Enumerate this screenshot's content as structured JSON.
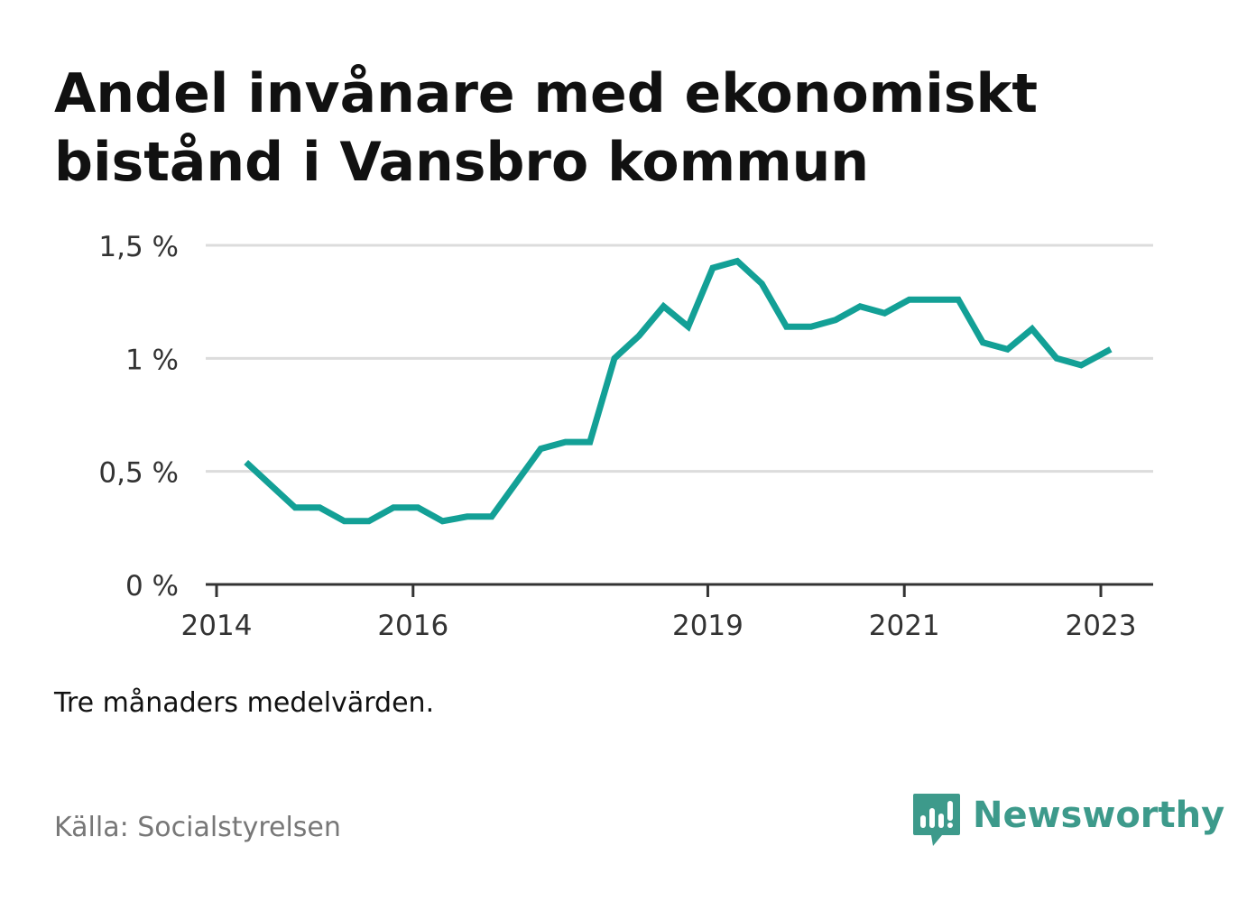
{
  "title": "Andel invånare med ekonomiskt bistånd i Vansbro kommun",
  "note": "Tre månaders medelvärden.",
  "source": "Källa: Socialstyrelsen",
  "brand": {
    "name": "Newsworthy",
    "color": "#3d9a8b",
    "icon": "newsworthy-logo-icon"
  },
  "colors": {
    "line": "#13a096",
    "grid": "#dcdcdc",
    "axis": "#333333"
  },
  "chart_data": {
    "type": "line",
    "title": "Andel invånare med ekonomiskt bistånd i Vansbro kommun",
    "xlabel": "",
    "ylabel": "",
    "ylim": [
      0,
      1.5
    ],
    "xlim": [
      2014.0,
      2023.4
    ],
    "grid": true,
    "yticks": [
      {
        "value": 0,
        "label": "0 %"
      },
      {
        "value": 0.5,
        "label": "0,5 %"
      },
      {
        "value": 1,
        "label": "1 %"
      },
      {
        "value": 1.5,
        "label": "1,5 %"
      }
    ],
    "xticks": [
      {
        "value": 2014,
        "label": "2014"
      },
      {
        "value": 2016,
        "label": "2016"
      },
      {
        "value": 2019,
        "label": "2019"
      },
      {
        "value": 2021,
        "label": "2021"
      },
      {
        "value": 2023,
        "label": "2023"
      }
    ],
    "x": [
      2014.3,
      2014.55,
      2014.8,
      2015.05,
      2015.3,
      2015.55,
      2015.8,
      2016.05,
      2016.3,
      2016.55,
      2016.8,
      2017.05,
      2017.3,
      2017.55,
      2017.8,
      2018.05,
      2018.3,
      2018.55,
      2018.8,
      2019.05,
      2019.3,
      2019.55,
      2019.8,
      2020.05,
      2020.3,
      2020.55,
      2020.8,
      2021.05,
      2021.3,
      2021.55,
      2021.8,
      2022.05,
      2022.3,
      2022.55,
      2022.8,
      2023.1
    ],
    "series": [
      {
        "values": [
          0.54,
          0.44,
          0.34,
          0.34,
          0.28,
          0.28,
          0.34,
          0.34,
          0.28,
          0.3,
          0.3,
          0.45,
          0.6,
          0.63,
          0.63,
          1.0,
          1.1,
          1.23,
          1.14,
          1.4,
          1.43,
          1.33,
          1.14,
          1.14,
          1.17,
          1.23,
          1.2,
          1.26,
          1.26,
          1.26,
          1.07,
          1.04,
          1.13,
          1.0,
          0.97,
          1.04
        ]
      }
    ]
  }
}
